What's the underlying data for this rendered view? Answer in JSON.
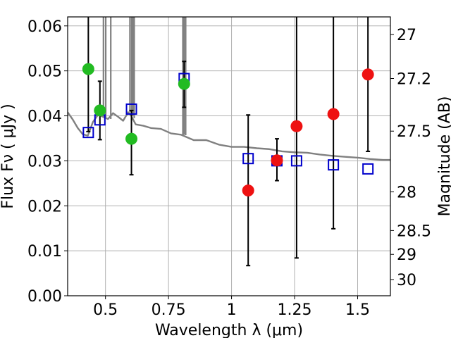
{
  "chart_data": {
    "type": "scatter",
    "xlabel": "Wavelength  λ (μm)",
    "ylabel": "Flux  Fν  ( μJy )",
    "ylabel_right": "Magnitude (AB)",
    "xlim": [
      0.35,
      1.63
    ],
    "ylim": [
      0.0,
      0.062
    ],
    "grid": true,
    "x_ticks": [
      {
        "value": 0.5,
        "label": "0.5"
      },
      {
        "value": 0.75,
        "label": "0.75"
      },
      {
        "value": 1.0,
        "label": "1"
      },
      {
        "value": 1.25,
        "label": "1.25"
      },
      {
        "value": 1.5,
        "label": "1.5"
      }
    ],
    "y_ticks": [
      {
        "value": 0.0,
        "label": "0.00"
      },
      {
        "value": 0.01,
        "label": "0.01"
      },
      {
        "value": 0.02,
        "label": "0.02"
      },
      {
        "value": 0.03,
        "label": "0.03"
      },
      {
        "value": 0.04,
        "label": "0.04"
      },
      {
        "value": 0.05,
        "label": "0.05"
      },
      {
        "value": 0.06,
        "label": "0.06"
      }
    ],
    "right_ticks": [
      {
        "flux": 0.0581,
        "label": "27"
      },
      {
        "flux": 0.0483,
        "label": "27.2"
      },
      {
        "flux": 0.0366,
        "label": "27.5"
      },
      {
        "flux": 0.0231,
        "label": "28"
      },
      {
        "flux": 0.0145,
        "label": "28.5"
      },
      {
        "flux": 0.0092,
        "label": "29"
      },
      {
        "flux": 0.0036,
        "label": "30"
      }
    ],
    "series": [
      {
        "kind": "model-line",
        "color": "#808080",
        "x": [
          0.35,
          0.37,
          0.39,
          0.41,
          0.43,
          0.45,
          0.47,
          0.49,
          0.51,
          0.53,
          0.55,
          0.57,
          0.59,
          0.6,
          0.62,
          0.65,
          0.68,
          0.72,
          0.76,
          0.8,
          0.85,
          0.9,
          0.95,
          1.0,
          1.05,
          1.1,
          1.15,
          1.2,
          1.25,
          1.3,
          1.35,
          1.4,
          1.45,
          1.5,
          1.55,
          1.6,
          1.63
        ],
        "y": [
          0.0408,
          0.0392,
          0.0373,
          0.0359,
          0.0356,
          0.0386,
          0.0402,
          0.0398,
          0.0393,
          0.0406,
          0.0398,
          0.0389,
          0.0408,
          0.0402,
          0.0381,
          0.0378,
          0.0373,
          0.0371,
          0.0361,
          0.0358,
          0.0346,
          0.0346,
          0.0336,
          0.0331,
          0.0331,
          0.0328,
          0.0326,
          0.0321,
          0.0319,
          0.0318,
          0.0314,
          0.0311,
          0.0309,
          0.0307,
          0.0304,
          0.0302,
          0.0302
        ]
      },
      {
        "kind": "model-bands",
        "color": "#000000",
        "x": [
          0.432,
          0.478,
          0.603,
          0.812,
          1.066,
          1.18,
          1.258,
          1.404,
          1.541
        ],
        "y": [
          0.0363,
          0.0391,
          0.0415,
          0.0483,
          0.0305,
          0.03,
          0.03,
          0.0291,
          0.0282
        ]
      },
      {
        "kind": "observed-green",
        "color": "#22bb22",
        "x": [
          0.432,
          0.478,
          0.603,
          0.812
        ],
        "y": [
          0.0504,
          0.0412,
          0.0349,
          0.0471
        ],
        "err_low": [
          0.0365,
          0.0347,
          0.0269,
          0.0419
        ],
        "err_high": [
          0.062,
          0.0477,
          0.0412,
          0.0521
        ]
      },
      {
        "kind": "observed-red",
        "color": "#ee1111",
        "x": [
          1.066,
          1.18,
          1.258,
          1.404,
          1.541
        ],
        "y": [
          0.0234,
          0.0301,
          0.0377,
          0.0404,
          0.0492
        ],
        "err_low": [
          0.0067,
          0.0256,
          0.0084,
          0.0149,
          0.0321
        ],
        "err_high": [
          0.0402,
          0.0349,
          0.062,
          0.062,
          0.062
        ]
      }
    ]
  }
}
